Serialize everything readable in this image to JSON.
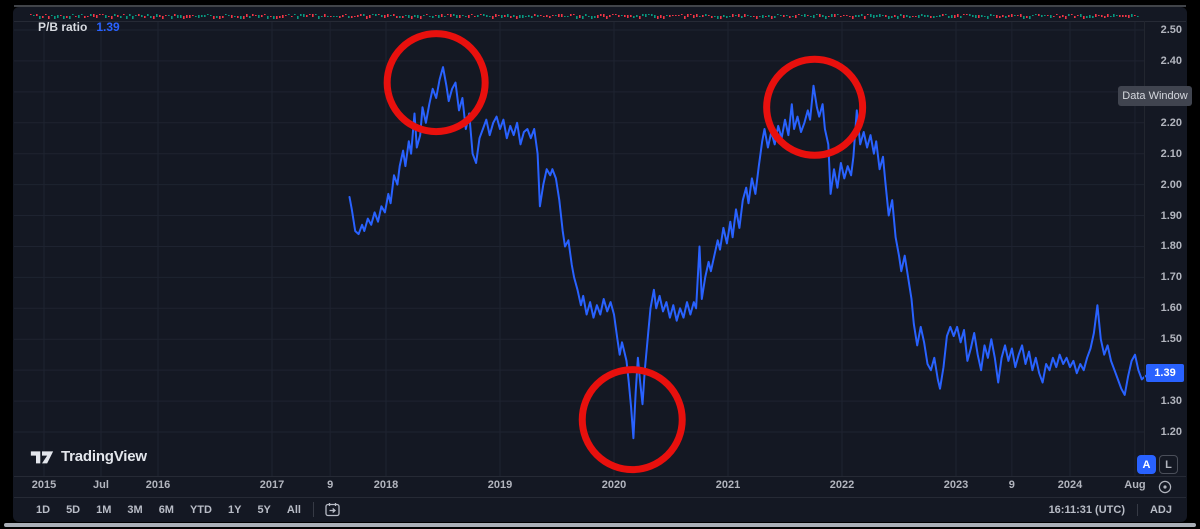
{
  "legend": {
    "label": "P/B ratio",
    "value": "1.39"
  },
  "tooltip": {
    "label": "Data Window"
  },
  "price_scale": {
    "labels": [
      "2.50",
      "2.40",
      "2.30",
      "2.20",
      "2.10",
      "2.00",
      "1.90",
      "1.80",
      "1.70",
      "1.60",
      "1.50",
      "1.40",
      "1.30",
      "1.20"
    ],
    "badge": "1.39"
  },
  "time_scale": {
    "ticks": [
      {
        "label": "2015",
        "year": 2015.0
      },
      {
        "label": "Jul",
        "year": 2015.5
      },
      {
        "label": "2016",
        "year": 2016.0
      },
      {
        "label": "2017",
        "year": 2017.0
      },
      {
        "label": "9",
        "year": 2017.51
      },
      {
        "label": "2018",
        "year": 2018.0
      },
      {
        "label": "2019",
        "year": 2019.0
      },
      {
        "label": "2020",
        "year": 2020.0
      },
      {
        "label": "2021",
        "year": 2021.0
      },
      {
        "label": "2022",
        "year": 2022.0
      },
      {
        "label": "2023",
        "year": 2023.0
      },
      {
        "label": "9",
        "year": 2023.49
      },
      {
        "label": "2024",
        "year": 2024.0
      },
      {
        "label": "Aug",
        "year": 2024.57
      }
    ]
  },
  "buttons": {
    "auto_label": "A",
    "log_label": "L"
  },
  "logo": {
    "text": "TradingView"
  },
  "toolbar": {
    "ranges": [
      "1D",
      "5D",
      "1M",
      "3M",
      "6M",
      "YTD",
      "1Y",
      "5Y",
      "All"
    ],
    "clock": "16:11:31 (UTC)",
    "adjust_label": "ADJ"
  },
  "colors": {
    "background": "#141823",
    "grid": "#1e2330",
    "line": "#2962ff",
    "circle": "#e8100d",
    "candle_up": "#089981",
    "candle_down": "#f23645",
    "scale_text": "#b2b5be",
    "badge": "#2962ff"
  },
  "chart_data": {
    "type": "line",
    "title": "P/B ratio",
    "xlabel": "",
    "ylabel": "P/B ratio",
    "x_range": [
      2015.0,
      2024.75
    ],
    "y_ticks": [
      1.2,
      1.3,
      1.4,
      1.5,
      1.6,
      1.7,
      1.8,
      1.9,
      2.0,
      2.1,
      2.2,
      2.3,
      2.4,
      2.5
    ],
    "grid": true,
    "last_value": 1.39,
    "series": [
      {
        "name": "P/B ratio",
        "points": [
          [
            2017.68,
            1.96
          ],
          [
            2017.7,
            1.92
          ],
          [
            2017.73,
            1.85
          ],
          [
            2017.76,
            1.84
          ],
          [
            2017.79,
            1.87
          ],
          [
            2017.81,
            1.85
          ],
          [
            2017.84,
            1.89
          ],
          [
            2017.87,
            1.87
          ],
          [
            2017.9,
            1.91
          ],
          [
            2017.93,
            1.88
          ],
          [
            2017.96,
            1.93
          ],
          [
            2017.99,
            1.91
          ],
          [
            2018.02,
            1.97
          ],
          [
            2018.04,
            1.94
          ],
          [
            2018.07,
            2.03
          ],
          [
            2018.1,
            2.0
          ],
          [
            2018.12,
            2.06
          ],
          [
            2018.15,
            2.11
          ],
          [
            2018.17,
            2.06
          ],
          [
            2018.2,
            2.14
          ],
          [
            2018.22,
            2.1
          ],
          [
            2018.25,
            2.23
          ],
          [
            2018.27,
            2.12
          ],
          [
            2018.3,
            2.16
          ],
          [
            2018.32,
            2.25
          ],
          [
            2018.35,
            2.2
          ],
          [
            2018.38,
            2.26
          ],
          [
            2018.41,
            2.31
          ],
          [
            2018.44,
            2.28
          ],
          [
            2018.47,
            2.34
          ],
          [
            2018.5,
            2.38
          ],
          [
            2018.53,
            2.32
          ],
          [
            2018.55,
            2.27
          ],
          [
            2018.58,
            2.31
          ],
          [
            2018.61,
            2.33
          ],
          [
            2018.64,
            2.24
          ],
          [
            2018.67,
            2.28
          ],
          [
            2018.7,
            2.18
          ],
          [
            2018.73,
            2.23
          ],
          [
            2018.76,
            2.1
          ],
          [
            2018.79,
            2.07
          ],
          [
            2018.82,
            2.15
          ],
          [
            2018.85,
            2.18
          ],
          [
            2018.88,
            2.21
          ],
          [
            2018.91,
            2.16
          ],
          [
            2018.94,
            2.2
          ],
          [
            2018.97,
            2.22
          ],
          [
            2019.0,
            2.18
          ],
          [
            2019.03,
            2.21
          ],
          [
            2019.06,
            2.15
          ],
          [
            2019.09,
            2.19
          ],
          [
            2019.12,
            2.16
          ],
          [
            2019.15,
            2.2
          ],
          [
            2019.18,
            2.13
          ],
          [
            2019.21,
            2.17
          ],
          [
            2019.24,
            2.18
          ],
          [
            2019.27,
            2.15
          ],
          [
            2019.3,
            2.18
          ],
          [
            2019.33,
            2.1
          ],
          [
            2019.35,
            1.93
          ],
          [
            2019.38,
            2.0
          ],
          [
            2019.41,
            2.05
          ],
          [
            2019.44,
            2.03
          ],
          [
            2019.46,
            2.05
          ],
          [
            2019.49,
            2.02
          ],
          [
            2019.52,
            1.95
          ],
          [
            2019.55,
            1.85
          ],
          [
            2019.57,
            1.8
          ],
          [
            2019.6,
            1.82
          ],
          [
            2019.63,
            1.74
          ],
          [
            2019.65,
            1.7
          ],
          [
            2019.68,
            1.66
          ],
          [
            2019.71,
            1.61
          ],
          [
            2019.73,
            1.64
          ],
          [
            2019.76,
            1.58
          ],
          [
            2019.79,
            1.62
          ],
          [
            2019.82,
            1.57
          ],
          [
            2019.85,
            1.61
          ],
          [
            2019.88,
            1.58
          ],
          [
            2019.91,
            1.63
          ],
          [
            2019.94,
            1.59
          ],
          [
            2019.97,
            1.62
          ],
          [
            2020.0,
            1.58
          ],
          [
            2020.03,
            1.5
          ],
          [
            2020.05,
            1.45
          ],
          [
            2020.07,
            1.49
          ],
          [
            2020.09,
            1.46
          ],
          [
            2020.11,
            1.43
          ],
          [
            2020.13,
            1.36
          ],
          [
            2020.15,
            1.28
          ],
          [
            2020.17,
            1.18
          ],
          [
            2020.19,
            1.33
          ],
          [
            2020.21,
            1.44
          ],
          [
            2020.23,
            1.36
          ],
          [
            2020.25,
            1.29
          ],
          [
            2020.27,
            1.4
          ],
          [
            2020.3,
            1.52
          ],
          [
            2020.32,
            1.6
          ],
          [
            2020.35,
            1.66
          ],
          [
            2020.37,
            1.6
          ],
          [
            2020.4,
            1.64
          ],
          [
            2020.43,
            1.59
          ],
          [
            2020.46,
            1.62
          ],
          [
            2020.49,
            1.57
          ],
          [
            2020.52,
            1.61
          ],
          [
            2020.55,
            1.56
          ],
          [
            2020.58,
            1.6
          ],
          [
            2020.61,
            1.57
          ],
          [
            2020.64,
            1.62
          ],
          [
            2020.67,
            1.58
          ],
          [
            2020.7,
            1.62
          ],
          [
            2020.72,
            1.6
          ],
          [
            2020.75,
            1.8
          ],
          [
            2020.77,
            1.63
          ],
          [
            2020.8,
            1.7
          ],
          [
            2020.83,
            1.75
          ],
          [
            2020.85,
            1.72
          ],
          [
            2020.88,
            1.77
          ],
          [
            2020.91,
            1.82
          ],
          [
            2020.93,
            1.79
          ],
          [
            2020.96,
            1.86
          ],
          [
            2020.99,
            1.81
          ],
          [
            2021.02,
            1.88
          ],
          [
            2021.04,
            1.83
          ],
          [
            2021.07,
            1.92
          ],
          [
            2021.1,
            1.86
          ],
          [
            2021.13,
            1.95
          ],
          [
            2021.16,
            1.99
          ],
          [
            2021.18,
            1.94
          ],
          [
            2021.21,
            2.02
          ],
          [
            2021.24,
            1.97
          ],
          [
            2021.27,
            2.06
          ],
          [
            2021.3,
            2.14
          ],
          [
            2021.32,
            2.18
          ],
          [
            2021.35,
            2.12
          ],
          [
            2021.38,
            2.17
          ],
          [
            2021.41,
            2.13
          ],
          [
            2021.44,
            2.19
          ],
          [
            2021.47,
            2.15
          ],
          [
            2021.5,
            2.21
          ],
          [
            2021.53,
            2.16
          ],
          [
            2021.56,
            2.26
          ],
          [
            2021.58,
            2.18
          ],
          [
            2021.61,
            2.22
          ],
          [
            2021.64,
            2.17
          ],
          [
            2021.67,
            2.2
          ],
          [
            2021.7,
            2.24
          ],
          [
            2021.72,
            2.21
          ],
          [
            2021.75,
            2.32
          ],
          [
            2021.78,
            2.25
          ],
          [
            2021.8,
            2.22
          ],
          [
            2021.83,
            2.26
          ],
          [
            2021.85,
            2.18
          ],
          [
            2021.88,
            2.13
          ],
          [
            2021.9,
            1.97
          ],
          [
            2021.93,
            2.05
          ],
          [
            2021.96,
            1.99
          ],
          [
            2021.99,
            2.07
          ],
          [
            2022.02,
            2.02
          ],
          [
            2022.05,
            2.06
          ],
          [
            2022.08,
            2.03
          ],
          [
            2022.1,
            2.09
          ],
          [
            2022.13,
            2.24
          ],
          [
            2022.16,
            2.13
          ],
          [
            2022.19,
            2.17
          ],
          [
            2022.22,
            2.12
          ],
          [
            2022.25,
            2.16
          ],
          [
            2022.28,
            2.1
          ],
          [
            2022.3,
            2.14
          ],
          [
            2022.33,
            2.05
          ],
          [
            2022.36,
            2.09
          ],
          [
            2022.38,
            2.01
          ],
          [
            2022.41,
            1.9
          ],
          [
            2022.44,
            1.95
          ],
          [
            2022.47,
            1.83
          ],
          [
            2022.5,
            1.77
          ],
          [
            2022.52,
            1.72
          ],
          [
            2022.55,
            1.77
          ],
          [
            2022.58,
            1.7
          ],
          [
            2022.61,
            1.63
          ],
          [
            2022.63,
            1.55
          ],
          [
            2022.66,
            1.48
          ],
          [
            2022.69,
            1.54
          ],
          [
            2022.72,
            1.49
          ],
          [
            2022.75,
            1.42
          ],
          [
            2022.78,
            1.4
          ],
          [
            2022.81,
            1.44
          ],
          [
            2022.84,
            1.37
          ],
          [
            2022.86,
            1.34
          ],
          [
            2022.89,
            1.41
          ],
          [
            2022.92,
            1.51
          ],
          [
            2022.95,
            1.54
          ],
          [
            2022.98,
            1.51
          ],
          [
            2023.01,
            1.54
          ],
          [
            2023.04,
            1.49
          ],
          [
            2023.07,
            1.53
          ],
          [
            2023.1,
            1.43
          ],
          [
            2023.13,
            1.47
          ],
          [
            2023.16,
            1.52
          ],
          [
            2023.19,
            1.45
          ],
          [
            2023.22,
            1.4
          ],
          [
            2023.25,
            1.48
          ],
          [
            2023.28,
            1.44
          ],
          [
            2023.31,
            1.5
          ],
          [
            2023.34,
            1.44
          ],
          [
            2023.37,
            1.36
          ],
          [
            2023.4,
            1.44
          ],
          [
            2023.43,
            1.48
          ],
          [
            2023.46,
            1.43
          ],
          [
            2023.49,
            1.47
          ],
          [
            2023.52,
            1.41
          ],
          [
            2023.55,
            1.45
          ],
          [
            2023.58,
            1.48
          ],
          [
            2023.61,
            1.42
          ],
          [
            2023.64,
            1.46
          ],
          [
            2023.67,
            1.4
          ],
          [
            2023.7,
            1.44
          ],
          [
            2023.73,
            1.39
          ],
          [
            2023.76,
            1.36
          ],
          [
            2023.79,
            1.42
          ],
          [
            2023.82,
            1.4
          ],
          [
            2023.85,
            1.44
          ],
          [
            2023.88,
            1.41
          ],
          [
            2023.91,
            1.45
          ],
          [
            2023.94,
            1.42
          ],
          [
            2023.97,
            1.44
          ],
          [
            2024.0,
            1.41
          ],
          [
            2024.03,
            1.43
          ],
          [
            2024.06,
            1.39
          ],
          [
            2024.09,
            1.42
          ],
          [
            2024.12,
            1.4
          ],
          [
            2024.15,
            1.44
          ],
          [
            2024.18,
            1.47
          ],
          [
            2024.21,
            1.52
          ],
          [
            2024.24,
            1.61
          ],
          [
            2024.27,
            1.5
          ],
          [
            2024.3,
            1.45
          ],
          [
            2024.33,
            1.48
          ],
          [
            2024.36,
            1.43
          ],
          [
            2024.39,
            1.4
          ],
          [
            2024.42,
            1.37
          ],
          [
            2024.45,
            1.34
          ],
          [
            2024.48,
            1.32
          ],
          [
            2024.51,
            1.38
          ],
          [
            2024.54,
            1.43
          ],
          [
            2024.57,
            1.45
          ],
          [
            2024.6,
            1.4
          ],
          [
            2024.63,
            1.37
          ],
          [
            2024.66,
            1.38
          ],
          [
            2024.7,
            1.39
          ]
        ]
      }
    ],
    "annotations": [
      {
        "type": "circle",
        "x": 2018.44,
        "y": 2.33,
        "radius_px": 49
      },
      {
        "type": "circle",
        "x": 2021.76,
        "y": 2.25,
        "radius_px": 48
      },
      {
        "type": "circle",
        "x": 2020.16,
        "y": 1.24,
        "radius_px": 50
      }
    ]
  }
}
